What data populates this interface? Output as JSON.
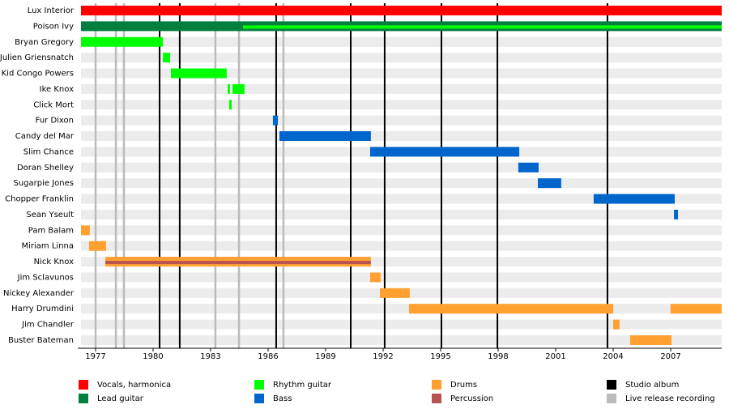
{
  "chart_data": {
    "type": "timeline",
    "xlim": [
      1976.24,
      2009.66
    ],
    "xticks": [
      1977,
      1980,
      1983,
      1986,
      1989,
      1992,
      1995,
      1998,
      2001,
      2004,
      2007
    ],
    "series": [
      {
        "name": "Vocals, harmonica",
        "color": "#ff0000"
      },
      {
        "name": "Lead guitar",
        "color": "#007f3f"
      },
      {
        "name": "Rhythm guitar",
        "color": "#00ff00"
      },
      {
        "name": "Bass",
        "color": "#0066cc"
      },
      {
        "name": "Drums",
        "color": "#ffa030"
      },
      {
        "name": "Percussion",
        "color": "#b85450"
      }
    ],
    "markers": [
      {
        "name": "Studio album",
        "color": "#000000",
        "x": [
          1980.34,
          1981.39,
          1986.42,
          1990.31,
          1992.08,
          1995.04,
          1997.96,
          2003.7
        ]
      },
      {
        "name": "Live release recording",
        "color": "#bbbbbb",
        "x": [
          1977.0,
          1978.06,
          1978.48,
          1983.25,
          1984.48,
          1986.8
        ]
      }
    ],
    "members": [
      {
        "name": "Lux Interior",
        "spans": [
          {
            "start": 1976.24,
            "end": 2009.66,
            "role": 0
          }
        ]
      },
      {
        "name": "Poison Ivy",
        "spans": [
          {
            "start": 1976.24,
            "end": 2009.66,
            "role": 1
          },
          {
            "start": 1984.69,
            "end": 2009.66,
            "role": 2
          }
        ]
      },
      {
        "name": "Bryan Gregory",
        "spans": [
          {
            "start": 1976.24,
            "end": 1980.51,
            "role": 2
          }
        ]
      },
      {
        "name": "Julien Griensnatch",
        "spans": [
          {
            "start": 1980.51,
            "end": 1980.89,
            "role": 2
          }
        ]
      },
      {
        "name": "Kid Congo Powers",
        "spans": [
          {
            "start": 1980.93,
            "end": 1983.84,
            "role": 2
          }
        ]
      },
      {
        "name": "Ike Knox",
        "spans": [
          {
            "start": 1983.89,
            "end": 1984.01,
            "role": 2
          },
          {
            "start": 1984.14,
            "end": 1984.77,
            "role": 2
          }
        ]
      },
      {
        "name": "Click Mort",
        "spans": [
          {
            "start": 1983.97,
            "end": 1984.1,
            "role": 2
          }
        ]
      },
      {
        "name": "Fur Dixon",
        "spans": [
          {
            "start": 1986.25,
            "end": 1986.51,
            "role": 3
          }
        ]
      },
      {
        "name": "Candy del Mar",
        "spans": [
          {
            "start": 1986.59,
            "end": 1991.36,
            "role": 3
          }
        ]
      },
      {
        "name": "Slim Chance",
        "spans": [
          {
            "start": 1991.32,
            "end": 1999.1,
            "role": 3
          }
        ]
      },
      {
        "name": "Doran Shelley",
        "spans": [
          {
            "start": 1999.05,
            "end": 2000.11,
            "role": 3
          }
        ]
      },
      {
        "name": "Sugarpie Jones",
        "spans": [
          {
            "start": 2000.07,
            "end": 2001.29,
            "role": 3
          }
        ]
      },
      {
        "name": "Chopper Franklin",
        "spans": [
          {
            "start": 2002.98,
            "end": 2007.21,
            "role": 3
          }
        ]
      },
      {
        "name": "Sean Yseult",
        "spans": [
          {
            "start": 2007.17,
            "end": 2007.38,
            "role": 3
          }
        ]
      },
      {
        "name": "Pam Balam",
        "spans": [
          {
            "start": 1976.24,
            "end": 1976.7,
            "role": 4
          }
        ]
      },
      {
        "name": "Miriam Linna",
        "spans": [
          {
            "start": 1976.66,
            "end": 1977.55,
            "role": 4
          }
        ]
      },
      {
        "name": "Nick Knox",
        "spans": [
          {
            "start": 1977.51,
            "end": 1991.36,
            "role": 4
          },
          {
            "start": 1977.51,
            "end": 1991.36,
            "role": 5
          }
        ]
      },
      {
        "name": "Jim Sclavunos",
        "spans": [
          {
            "start": 1991.32,
            "end": 1991.87,
            "role": 4
          }
        ]
      },
      {
        "name": "Nickey Alexander",
        "spans": [
          {
            "start": 1991.83,
            "end": 1993.39,
            "role": 4
          }
        ]
      },
      {
        "name": "Harry Drumdini",
        "spans": [
          {
            "start": 1993.35,
            "end": 2004.0,
            "role": 4
          },
          {
            "start": 2006.99,
            "end": 2009.66,
            "role": 4
          }
        ]
      },
      {
        "name": "Jim Chandler",
        "spans": [
          {
            "start": 2004.0,
            "end": 2004.33,
            "role": 4
          }
        ]
      },
      {
        "name": "Buster Bateman",
        "spans": [
          {
            "start": 2004.88,
            "end": 2007.04,
            "role": 4
          }
        ]
      }
    ]
  }
}
